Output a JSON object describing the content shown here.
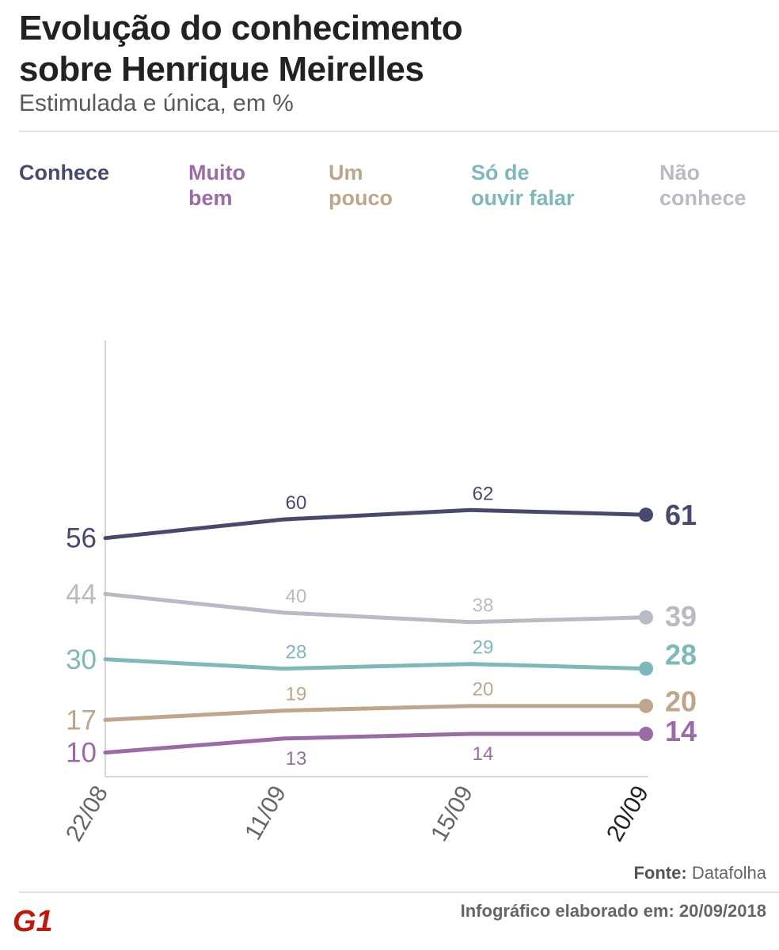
{
  "header": {
    "title_line1": "Evolução do conhecimento",
    "title_line2": "sobre Henrique Meirelles",
    "subtitle": "Estimulada e única, em %"
  },
  "legend": [
    {
      "label": "Conhece",
      "color": "#474a6e"
    },
    {
      "label": "Muito\nbem",
      "color": "#9b6ba8"
    },
    {
      "label": "Um\npouco",
      "color": "#bfa68a"
    },
    {
      "label": "Só de\nouvir falar",
      "color": "#7db8ba"
    },
    {
      "label": "Não\nconhece",
      "color": "#b8bac4"
    }
  ],
  "chart_data": {
    "type": "line",
    "title": "Evolução do conhecimento sobre Henrique Meirelles",
    "subtitle": "Estimulada e única, em %",
    "x": [
      "22/08",
      "11/09",
      "15/09",
      "20/09"
    ],
    "series": [
      {
        "name": "Conhece",
        "color": "#474a6e",
        "values": [
          56,
          60,
          62,
          61
        ]
      },
      {
        "name": "Não conhece",
        "color": "#b8bac4",
        "values": [
          44,
          40,
          38,
          39
        ]
      },
      {
        "name": "Só de ouvir falar",
        "color": "#7db8ba",
        "values": [
          30,
          28,
          29,
          28
        ]
      },
      {
        "name": "Um pouco",
        "color": "#bfa68a",
        "values": [
          17,
          19,
          20,
          20
        ]
      },
      {
        "name": "Muito bem",
        "color": "#9b6ba8",
        "values": [
          10,
          13,
          14,
          14
        ]
      }
    ],
    "ylim": [
      0,
      100
    ],
    "xlabel": "",
    "ylabel": "",
    "grid": false
  },
  "footer": {
    "source_label": "Fonte:",
    "source_value": "Datafolha",
    "credit": "Infográfico elaborado em: 20/09/2018",
    "logo_text": "G1",
    "logo_color": "#c4170c"
  }
}
